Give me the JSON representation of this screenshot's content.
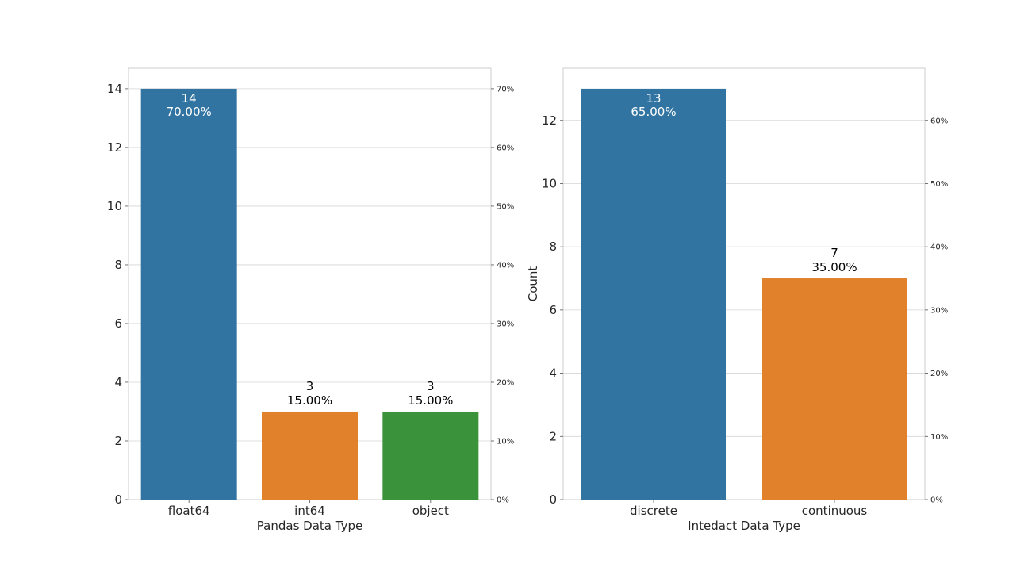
{
  "chart_data": [
    {
      "type": "bar",
      "title": "",
      "xlabel": "Pandas Data Type",
      "ylabel": "",
      "categories": [
        "float64",
        "int64",
        "object"
      ],
      "values": [
        14,
        3,
        3
      ],
      "percent_labels": [
        "70.00%",
        "15.00%",
        "15.00%"
      ],
      "colors": [
        "#3274a1",
        "#e1812c",
        "#3a923a"
      ],
      "ylim": [
        0,
        14.7
      ],
      "yticks": [
        0,
        2,
        4,
        6,
        8,
        10,
        12,
        14
      ],
      "secondary_ylim": [
        0,
        73.5
      ],
      "secondary_yticks": [
        "0%",
        "10%",
        "20%",
        "30%",
        "40%",
        "50%",
        "60%",
        "70%"
      ],
      "grid": true,
      "legend": "none"
    },
    {
      "type": "bar",
      "title": "",
      "xlabel": "Intedact Data Type",
      "ylabel": "Count",
      "categories": [
        "discrete",
        "continuous"
      ],
      "values": [
        13,
        7
      ],
      "percent_labels": [
        "65.00%",
        "35.00%"
      ],
      "colors": [
        "#3274a1",
        "#e1812c"
      ],
      "ylim": [
        0,
        13.65
      ],
      "yticks": [
        0,
        2,
        4,
        6,
        8,
        10,
        12
      ],
      "secondary_ylim": [
        0,
        68.25
      ],
      "secondary_yticks": [
        "0%",
        "10%",
        "20%",
        "30%",
        "40%",
        "50%",
        "60%"
      ],
      "grid": true,
      "legend": "none"
    }
  ]
}
